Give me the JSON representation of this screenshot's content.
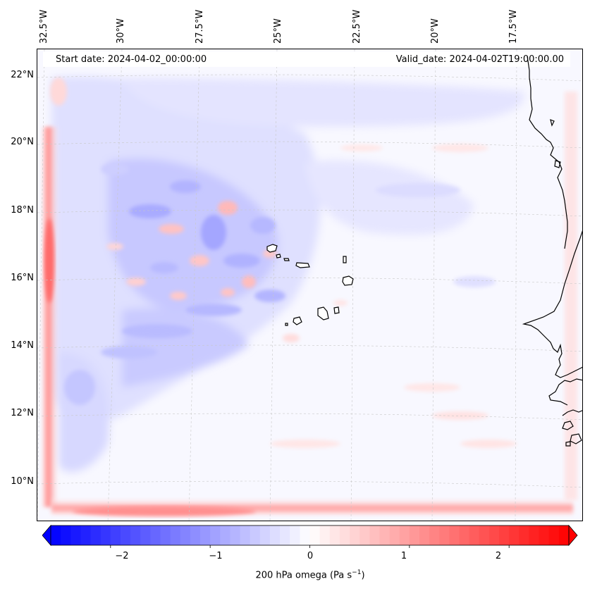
{
  "header": {
    "start_date": "Start date: 2024-04-02_00:00:00",
    "valid_date": "Valid_date: 2024-04-02T19:00:00.00"
  },
  "map": {
    "longitude_labels": [
      "32.5°W",
      "30°W",
      "27.5°W",
      "25°W",
      "22.5°W",
      "20°W",
      "17.5°W"
    ],
    "latitude_labels": [
      "22°N",
      "20°N",
      "18°N",
      "16°N",
      "14°N",
      "12°N",
      "10°N"
    ],
    "field": "200 hPa omega",
    "units": "Pa s-1",
    "colormap": "bwr",
    "colors": {
      "negative": "#0000ff",
      "zero": "#ffffff",
      "positive": "#ff0000"
    }
  },
  "colorbar": {
    "ticks": [
      "−2",
      "−1",
      "0",
      "1",
      "2"
    ],
    "tick_values": [
      -2,
      -1,
      0,
      1,
      2
    ],
    "range": [
      -2.6,
      2.6
    ],
    "label_main": "200 hPa omega (Pa s",
    "label_exp": "−1",
    "label_close": ")"
  }
}
